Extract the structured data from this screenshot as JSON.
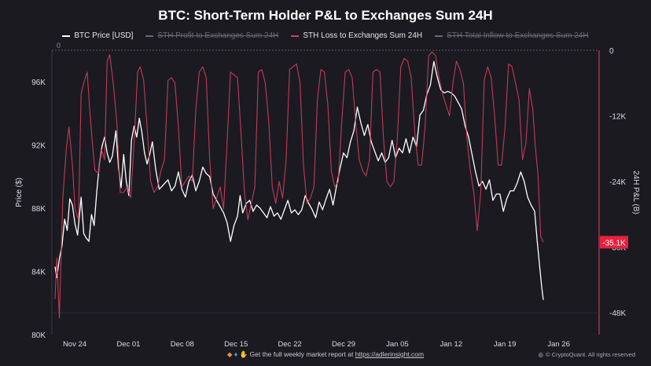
{
  "title": "BTC: Short-Term Holder P&L to Exchanges Sum 24H",
  "legend": [
    {
      "label": "BTC Price [USD]",
      "color": "#ffffff",
      "active": true
    },
    {
      "label": "STH Profit to Exchanges Sum 24H",
      "color": "#7a7a82",
      "active": false
    },
    {
      "label": "STH Loss to Exchanges Sum 24H",
      "color": "#d2405e",
      "active": true
    },
    {
      "label": "STH Total Inflow to Exchanges Sum 24H",
      "color": "#7a7a82",
      "active": false
    }
  ],
  "footer": {
    "prefix": "Get the full weekly market report at ",
    "link": "https://adlerinsight.com",
    "credit": "© CryptoQuant. All rights reserved"
  },
  "chart_data": {
    "type": "line",
    "x_tick_labels": [
      "Nov 24",
      "Dec 01",
      "Dec 08",
      "Dec 15",
      "Dec 22",
      "Dec 29",
      "Jan 05",
      "Jan 12",
      "Jan 19",
      "Jan 26"
    ],
    "ylabel": "Price ($)",
    "ylabel_right": "24H P&L (B)",
    "ylim": [
      80000,
      98000
    ],
    "yticks": [
      80000,
      84000,
      88000,
      92000,
      96000
    ],
    "ytick_labels": [
      "80K",
      "84K",
      "88K",
      "92K",
      "96K"
    ],
    "y2lim": [
      -52,
      0
    ],
    "y2ticks": [
      0,
      -12,
      -24,
      -36,
      -48
    ],
    "y2tick_labels": [
      "0",
      "-12K",
      "-24K",
      "-36K",
      "-48K"
    ],
    "y2_current_label": "-35.1K",
    "y2_current_value": -35.1,
    "zero_line_label": "0",
    "series": [
      {
        "name": "BTC Price [USD]",
        "color": "#ffffff",
        "axis": "left",
        "points": [
          [
            0.0,
            84300
          ],
          [
            0.2,
            83600
          ],
          [
            0.5,
            84800
          ],
          [
            0.8,
            85600
          ],
          [
            1.1,
            87300
          ],
          [
            1.4,
            86600
          ],
          [
            1.7,
            88600
          ],
          [
            2.0,
            88200
          ],
          [
            2.3,
            87000
          ],
          [
            2.6,
            86300
          ],
          [
            3.0,
            88700
          ],
          [
            3.3,
            86400
          ],
          [
            3.6,
            86100
          ],
          [
            3.9,
            85900
          ],
          [
            4.2,
            87600
          ],
          [
            4.5,
            86900
          ],
          [
            4.8,
            89000
          ],
          [
            5.1,
            90800
          ],
          [
            5.4,
            91900
          ],
          [
            5.7,
            92500
          ],
          [
            6.0,
            91500
          ],
          [
            6.3,
            90900
          ],
          [
            6.6,
            91300
          ],
          [
            7.0,
            92900
          ],
          [
            7.3,
            90600
          ],
          [
            7.6,
            89300
          ],
          [
            7.9,
            91400
          ],
          [
            8.2,
            89700
          ],
          [
            8.5,
            88800
          ],
          [
            8.8,
            92300
          ],
          [
            9.1,
            93200
          ],
          [
            9.4,
            92500
          ],
          [
            9.7,
            93700
          ],
          [
            10.0,
            92800
          ],
          [
            10.3,
            91500
          ],
          [
            10.6,
            90800
          ],
          [
            10.9,
            91400
          ],
          [
            11.2,
            92200
          ],
          [
            11.6,
            90400
          ],
          [
            12.0,
            89200
          ],
          [
            12.5,
            89500
          ],
          [
            13.0,
            89800
          ],
          [
            13.4,
            89100
          ],
          [
            13.8,
            89400
          ],
          [
            14.2,
            90300
          ],
          [
            14.6,
            89200
          ],
          [
            15.0,
            88700
          ],
          [
            15.4,
            89700
          ],
          [
            15.8,
            90100
          ],
          [
            16.2,
            89100
          ],
          [
            16.6,
            89700
          ],
          [
            17.0,
            90600
          ],
          [
            17.4,
            90200
          ],
          [
            17.8,
            90000
          ],
          [
            18.2,
            88900
          ],
          [
            18.6,
            88500
          ],
          [
            19.0,
            88100
          ],
          [
            19.4,
            87700
          ],
          [
            19.8,
            87100
          ],
          [
            20.2,
            85900
          ],
          [
            20.6,
            86900
          ],
          [
            21.0,
            87500
          ],
          [
            21.3,
            88800
          ],
          [
            21.6,
            87700
          ],
          [
            22.0,
            88300
          ],
          [
            22.4,
            88500
          ],
          [
            22.8,
            87800
          ],
          [
            23.2,
            88200
          ],
          [
            23.6,
            88000
          ],
          [
            24.0,
            87700
          ],
          [
            24.4,
            87400
          ],
          [
            24.8,
            88100
          ],
          [
            25.2,
            87500
          ],
          [
            25.6,
            87700
          ],
          [
            26.0,
            87300
          ],
          [
            26.4,
            87900
          ],
          [
            26.8,
            88500
          ],
          [
            27.2,
            87700
          ],
          [
            27.6,
            87900
          ],
          [
            28.0,
            87600
          ],
          [
            28.4,
            87900
          ],
          [
            28.8,
            88800
          ],
          [
            29.2,
            88300
          ],
          [
            29.6,
            87900
          ],
          [
            30.0,
            87400
          ],
          [
            30.4,
            88400
          ],
          [
            30.8,
            87900
          ],
          [
            31.2,
            88600
          ],
          [
            31.6,
            89200
          ],
          [
            32.0,
            88200
          ],
          [
            32.4,
            89400
          ],
          [
            32.8,
            90500
          ],
          [
            33.2,
            91500
          ],
          [
            33.6,
            91200
          ],
          [
            34.0,
            92200
          ],
          [
            34.4,
            92900
          ],
          [
            34.8,
            94400
          ],
          [
            35.2,
            93400
          ],
          [
            35.6,
            92600
          ],
          [
            36.0,
            93300
          ],
          [
            36.4,
            92200
          ],
          [
            36.8,
            91600
          ],
          [
            37.2,
            91000
          ],
          [
            37.6,
            91500
          ],
          [
            38.0,
            90900
          ],
          [
            38.4,
            91200
          ],
          [
            38.8,
            92300
          ],
          [
            39.2,
            91200
          ],
          [
            39.6,
            91800
          ],
          [
            40.0,
            91500
          ],
          [
            40.4,
            92400
          ],
          [
            40.8,
            91500
          ],
          [
            41.2,
            92500
          ],
          [
            41.6,
            91900
          ],
          [
            42.0,
            93900
          ],
          [
            42.4,
            94200
          ],
          [
            42.8,
            95200
          ],
          [
            43.2,
            95800
          ],
          [
            43.6,
            97300
          ],
          [
            44.0,
            96300
          ],
          [
            44.4,
            95500
          ],
          [
            44.8,
            95300
          ],
          [
            45.2,
            95400
          ],
          [
            45.6,
            95300
          ],
          [
            46.0,
            95100
          ],
          [
            46.4,
            94700
          ],
          [
            46.8,
            94300
          ],
          [
            47.2,
            93200
          ],
          [
            47.6,
            92500
          ],
          [
            48.0,
            91400
          ],
          [
            48.4,
            90300
          ],
          [
            48.8,
            89400
          ],
          [
            49.2,
            89700
          ],
          [
            49.6,
            89200
          ],
          [
            50.0,
            89800
          ],
          [
            50.4,
            88500
          ],
          [
            50.8,
            88900
          ],
          [
            51.2,
            88900
          ],
          [
            51.6,
            87800
          ],
          [
            52.0,
            88600
          ],
          [
            52.4,
            89100
          ],
          [
            52.8,
            89100
          ],
          [
            53.2,
            89600
          ],
          [
            53.6,
            90300
          ],
          [
            54.0,
            89700
          ],
          [
            54.4,
            88700
          ],
          [
            54.8,
            88200
          ],
          [
            55.2,
            87800
          ],
          [
            55.5,
            85900
          ],
          [
            55.8,
            84200
          ],
          [
            56.0,
            83100
          ],
          [
            56.2,
            82200
          ]
        ]
      },
      {
        "name": "STH Loss to Exchanges Sum 24H",
        "color": "#d2405e",
        "axis": "right",
        "points": [
          [
            0.0,
            -45.5
          ],
          [
            0.2,
            -38
          ],
          [
            0.5,
            -49
          ],
          [
            0.9,
            -27
          ],
          [
            1.3,
            -18
          ],
          [
            1.6,
            -14
          ],
          [
            2.0,
            -21
          ],
          [
            2.3,
            -29
          ],
          [
            2.7,
            -31
          ],
          [
            3.0,
            -8
          ],
          [
            3.3,
            -6
          ],
          [
            3.7,
            -4
          ],
          [
            4.0,
            -11
          ],
          [
            4.3,
            -17
          ],
          [
            4.6,
            -22
          ],
          [
            5.0,
            -22.5
          ],
          [
            5.3,
            -18
          ],
          [
            5.7,
            -20
          ],
          [
            6.0,
            -2
          ],
          [
            6.3,
            -0.8
          ],
          [
            6.7,
            -6
          ],
          [
            7.1,
            -13
          ],
          [
            7.5,
            -26
          ],
          [
            7.9,
            -26
          ],
          [
            8.3,
            -25
          ],
          [
            8.7,
            -27
          ],
          [
            9.1,
            -17
          ],
          [
            9.5,
            -4
          ],
          [
            9.8,
            -3
          ],
          [
            10.2,
            -5.5
          ],
          [
            10.6,
            -14
          ],
          [
            11.0,
            -24
          ],
          [
            11.4,
            -26
          ],
          [
            11.8,
            -25
          ],
          [
            12.2,
            -22
          ],
          [
            12.6,
            -20
          ],
          [
            13.0,
            -5.5
          ],
          [
            13.4,
            -5
          ],
          [
            13.8,
            -6
          ],
          [
            14.2,
            -14
          ],
          [
            14.6,
            -25
          ],
          [
            15.0,
            -24
          ],
          [
            15.4,
            -23
          ],
          [
            15.8,
            -24
          ],
          [
            16.2,
            -11
          ],
          [
            16.6,
            -4
          ],
          [
            17.0,
            -3
          ],
          [
            17.4,
            -5
          ],
          [
            17.8,
            -20
          ],
          [
            18.2,
            -29
          ],
          [
            18.6,
            -27
          ],
          [
            19.0,
            -25
          ],
          [
            19.4,
            -29
          ],
          [
            19.8,
            -17
          ],
          [
            20.2,
            -4
          ],
          [
            20.6,
            -4.5
          ],
          [
            21.0,
            -5
          ],
          [
            21.4,
            -15
          ],
          [
            21.8,
            -26
          ],
          [
            22.2,
            -31
          ],
          [
            22.6,
            -28
          ],
          [
            23.0,
            -25
          ],
          [
            23.4,
            -4
          ],
          [
            23.8,
            -3.5
          ],
          [
            24.2,
            -6
          ],
          [
            24.6,
            -13
          ],
          [
            25.0,
            -25
          ],
          [
            25.4,
            -28
          ],
          [
            25.8,
            -24
          ],
          [
            26.2,
            -27
          ],
          [
            26.6,
            -20
          ],
          [
            27.0,
            -3.5
          ],
          [
            27.4,
            -3
          ],
          [
            27.8,
            -2.5
          ],
          [
            28.2,
            -6
          ],
          [
            28.6,
            -21
          ],
          [
            29.0,
            -28
          ],
          [
            29.4,
            -27
          ],
          [
            29.8,
            -25
          ],
          [
            30.2,
            -9
          ],
          [
            30.6,
            -3.5
          ],
          [
            31.0,
            -4
          ],
          [
            31.4,
            -10
          ],
          [
            31.8,
            -22
          ],
          [
            32.2,
            -25
          ],
          [
            32.6,
            -24
          ],
          [
            33.0,
            -13
          ],
          [
            33.4,
            -4
          ],
          [
            33.8,
            -3.5
          ],
          [
            34.2,
            -5
          ],
          [
            34.6,
            -13
          ],
          [
            35.0,
            -20
          ],
          [
            35.4,
            -22
          ],
          [
            35.8,
            -23
          ],
          [
            36.2,
            -20
          ],
          [
            36.6,
            -4
          ],
          [
            37.0,
            -3.5
          ],
          [
            37.4,
            -4
          ],
          [
            37.8,
            -16
          ],
          [
            38.2,
            -24
          ],
          [
            38.6,
            -25
          ],
          [
            39.0,
            -24
          ],
          [
            39.4,
            -16
          ],
          [
            39.8,
            -3
          ],
          [
            40.2,
            -1.5
          ],
          [
            40.6,
            -2
          ],
          [
            41.0,
            -5
          ],
          [
            41.4,
            -15
          ],
          [
            41.8,
            -21
          ],
          [
            42.2,
            -21
          ],
          [
            42.6,
            -14
          ],
          [
            43.0,
            -1
          ],
          [
            43.4,
            -0.3
          ],
          [
            43.8,
            -1
          ],
          [
            44.2,
            -5
          ],
          [
            44.6,
            -8
          ],
          [
            45.0,
            -10
          ],
          [
            45.4,
            -12
          ],
          [
            45.8,
            -6
          ],
          [
            46.2,
            -2
          ],
          [
            46.6,
            -3.5
          ],
          [
            47.0,
            -6
          ],
          [
            47.4,
            -16
          ],
          [
            47.8,
            -22
          ],
          [
            48.2,
            -26
          ],
          [
            48.6,
            -33
          ],
          [
            49.0,
            -26
          ],
          [
            49.4,
            -5.5
          ],
          [
            49.8,
            -3
          ],
          [
            50.2,
            -5
          ],
          [
            50.6,
            -12
          ],
          [
            51.0,
            -21
          ],
          [
            51.4,
            -21
          ],
          [
            51.8,
            -14
          ],
          [
            52.2,
            -2.5
          ],
          [
            52.6,
            -3
          ],
          [
            53.0,
            -6
          ],
          [
            53.4,
            -9
          ],
          [
            53.8,
            -20
          ],
          [
            54.2,
            -17
          ],
          [
            54.6,
            -7
          ],
          [
            55.0,
            -11
          ],
          [
            55.3,
            -18
          ],
          [
            55.6,
            -23
          ],
          [
            55.9,
            -34
          ],
          [
            56.2,
            -35.1
          ]
        ]
      }
    ],
    "grid": false
  }
}
